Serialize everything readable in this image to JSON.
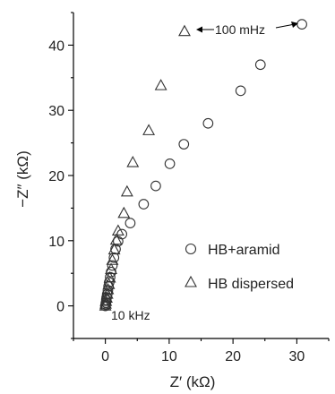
{
  "chart_data": {
    "type": "scatter",
    "xlabel": "Z′ (kΩ)",
    "ylabel": "−Z″ (kΩ)",
    "xlim": [
      -5,
      35
    ],
    "ylim": [
      -5,
      45
    ],
    "xticks": [
      0,
      10,
      20,
      30
    ],
    "yticks": [
      0,
      10,
      20,
      30,
      40
    ],
    "legend_position": "right",
    "series": [
      {
        "name": "HB+aramid",
        "marker": "circle",
        "points": [
          [
            0.0,
            0.0
          ],
          [
            0.05,
            0.2
          ],
          [
            0.1,
            0.5
          ],
          [
            0.15,
            0.9
          ],
          [
            0.2,
            1.3
          ],
          [
            0.3,
            1.8
          ],
          [
            0.4,
            2.4
          ],
          [
            0.5,
            3.0
          ],
          [
            0.6,
            3.6
          ],
          [
            0.75,
            4.4
          ],
          [
            0.9,
            5.2
          ],
          [
            1.1,
            6.2
          ],
          [
            1.35,
            7.4
          ],
          [
            1.6,
            8.7
          ],
          [
            2.0,
            9.9
          ],
          [
            2.6,
            11.0
          ],
          [
            3.9,
            12.7
          ],
          [
            6.0,
            15.6
          ],
          [
            7.9,
            18.4
          ],
          [
            10.1,
            21.8
          ],
          [
            12.3,
            24.8
          ],
          [
            16.1,
            28.0
          ],
          [
            21.2,
            33.0
          ],
          [
            24.3,
            37.0
          ],
          [
            30.8,
            43.2
          ]
        ]
      },
      {
        "name": "HB dispersed",
        "marker": "triangle",
        "points": [
          [
            0.0,
            0.0
          ],
          [
            0.05,
            0.3
          ],
          [
            0.1,
            0.7
          ],
          [
            0.2,
            1.2
          ],
          [
            0.3,
            1.8
          ],
          [
            0.4,
            2.5
          ],
          [
            0.55,
            3.3
          ],
          [
            0.7,
            4.3
          ],
          [
            0.9,
            5.6
          ],
          [
            1.1,
            7.0
          ],
          [
            1.4,
            8.6
          ],
          [
            1.7,
            10.1
          ],
          [
            2.0,
            11.5
          ],
          [
            2.9,
            14.2
          ],
          [
            3.4,
            17.5
          ],
          [
            4.3,
            22.0
          ],
          [
            6.8,
            26.9
          ],
          [
            8.7,
            33.8
          ],
          [
            12.4,
            42.1
          ]
        ]
      }
    ],
    "annotations": {
      "low_frequency": "100 mHz",
      "high_frequency": "10 kHz"
    }
  }
}
